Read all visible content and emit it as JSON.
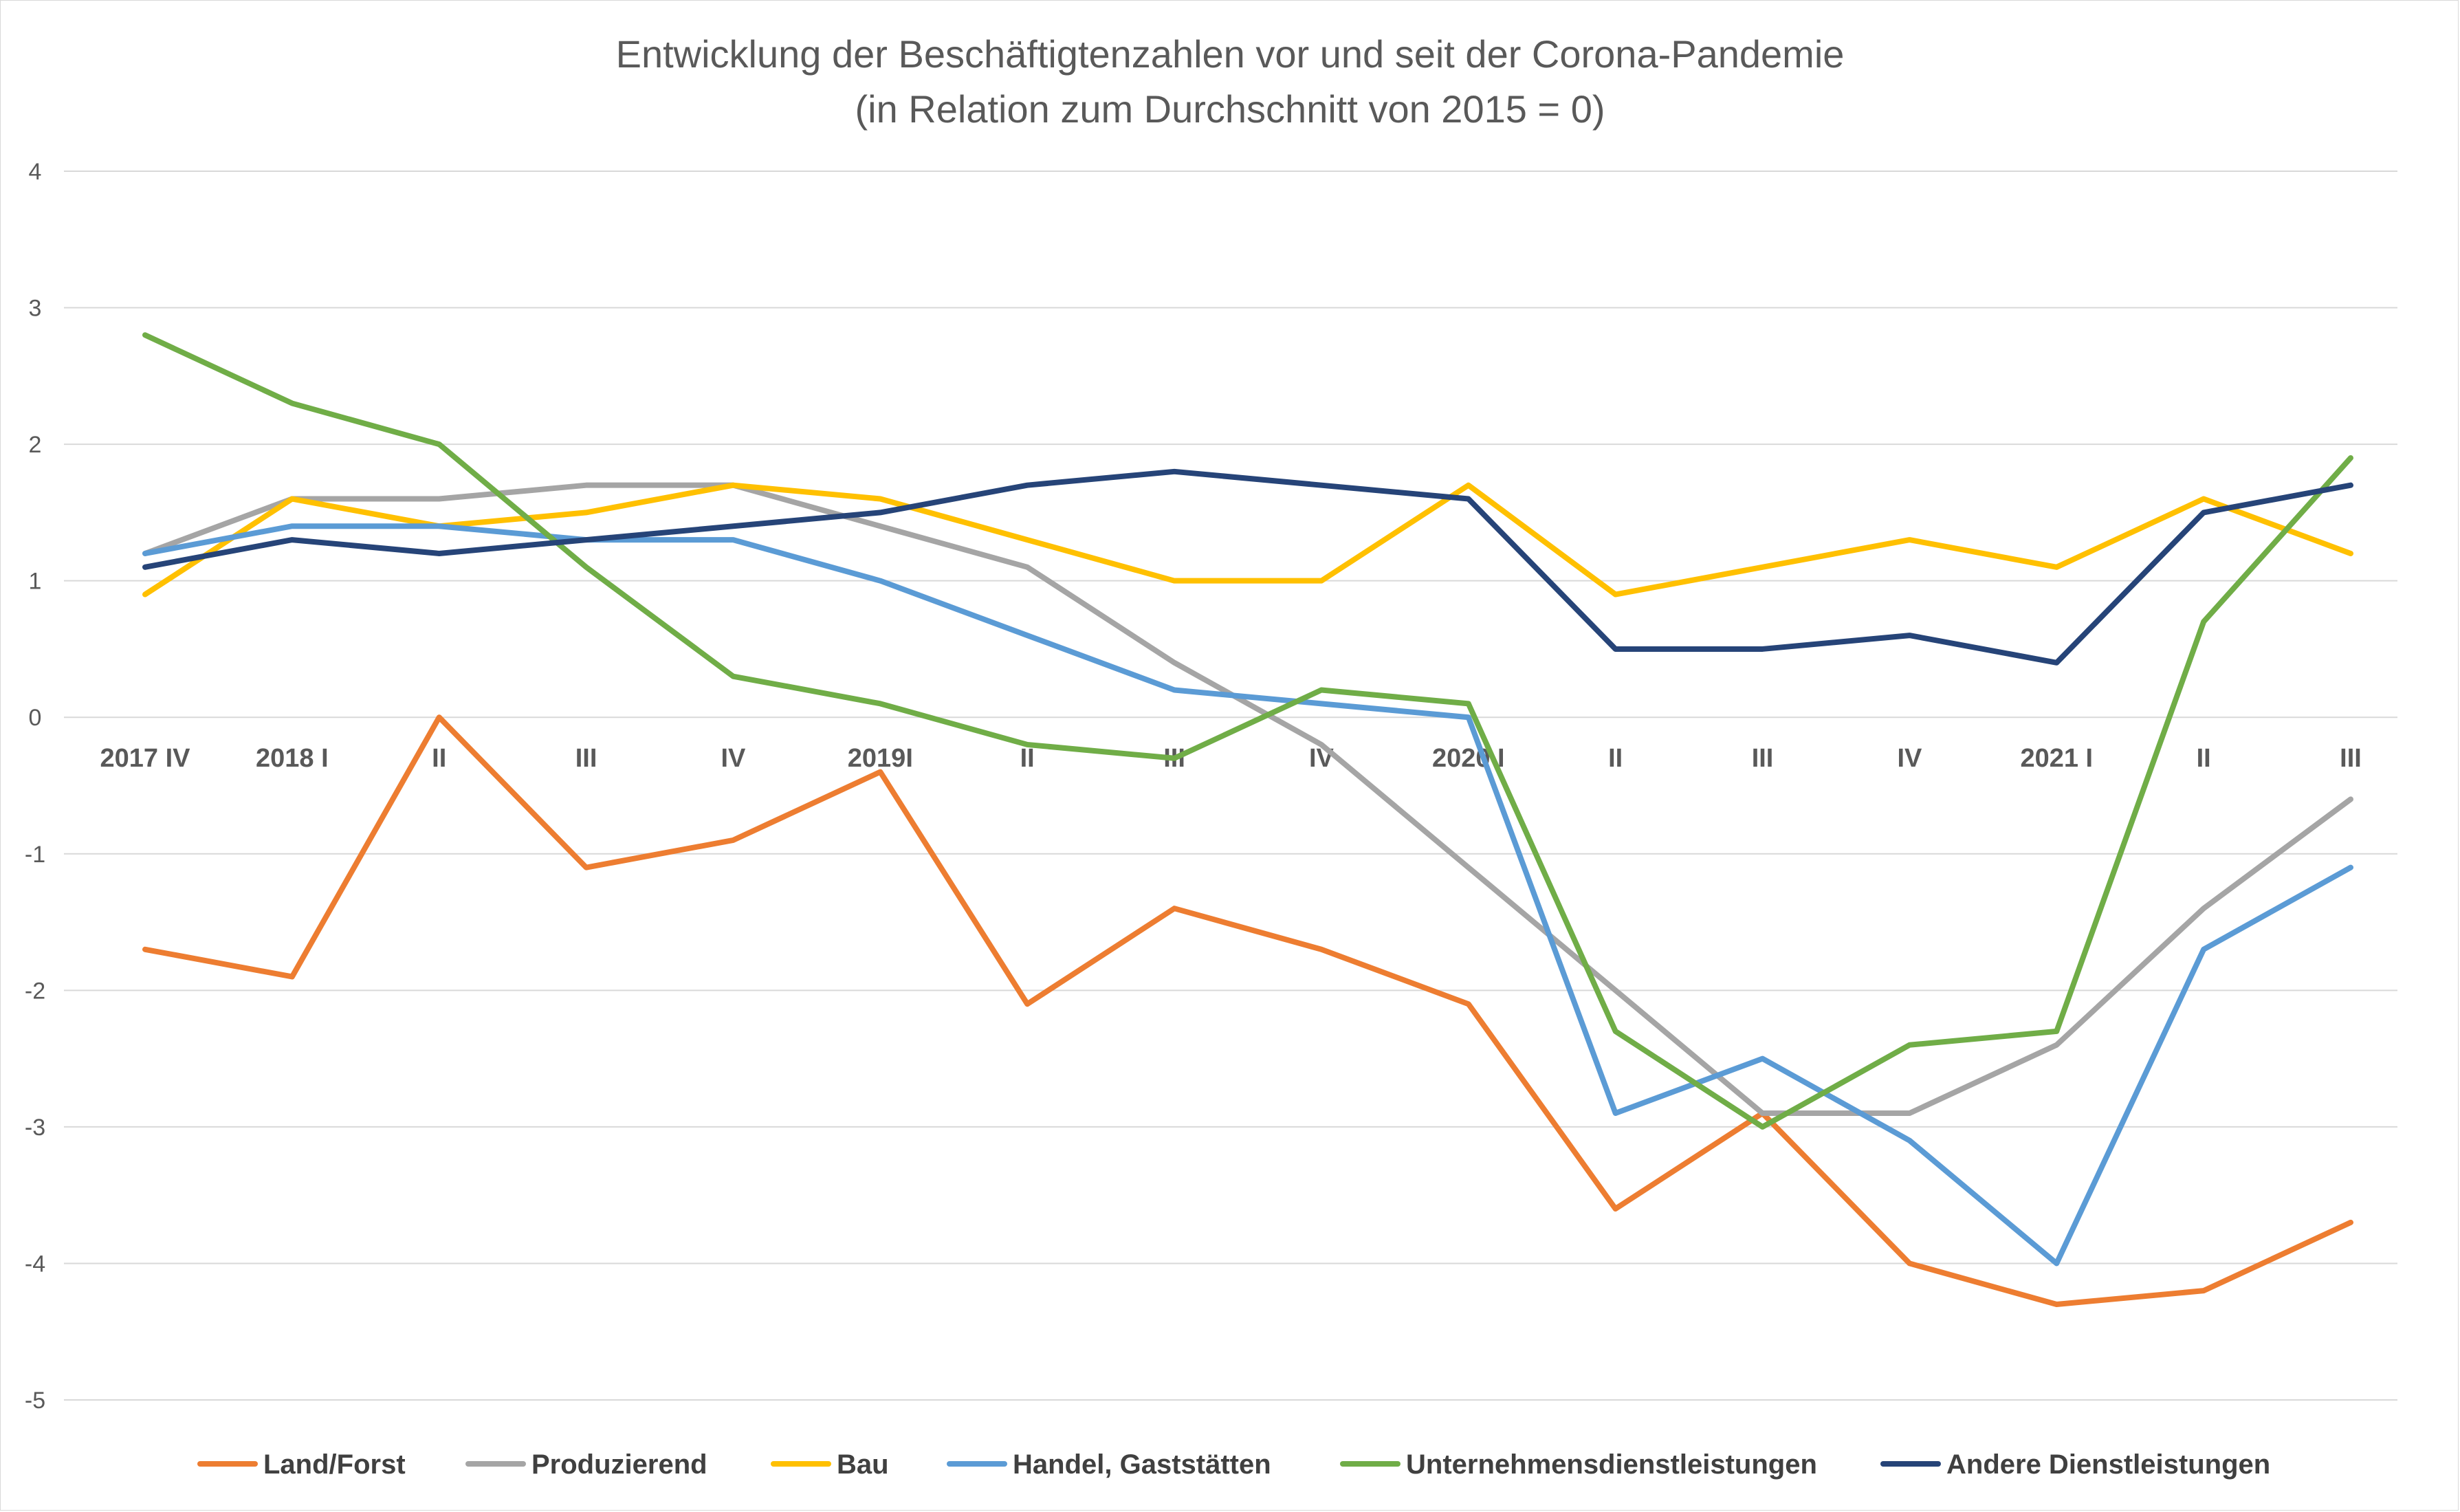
{
  "chart_data": {
    "type": "line",
    "title": "Entwicklung der Beschäftigtenzahlen vor und seit der Corona-Pandemie",
    "subtitle": "(in Relation zum Durchschnitt von 2015 = 0)",
    "categories": [
      "2017 IV",
      "2018 I",
      "II",
      "III",
      "IV",
      "2019I",
      "II",
      "III",
      "IV",
      "2020 I",
      "II",
      "III",
      "IV",
      "2021 I",
      "II",
      "III"
    ],
    "ylim": [
      -5,
      4
    ],
    "yticks": [
      "-5",
      "-4",
      "-3",
      "-2",
      "-1",
      "0",
      "1",
      "2",
      "3",
      "4"
    ],
    "grid": true,
    "legend_position": "bottom",
    "series": [
      {
        "name": "Land/Forst",
        "color": "#ED7D31",
        "values": [
          -1.7,
          -1.9,
          0.0,
          -1.1,
          -0.9,
          -0.4,
          -2.1,
          -1.4,
          -1.7,
          -2.1,
          -3.6,
          -2.9,
          -4.0,
          -4.3,
          -4.2,
          -3.7
        ]
      },
      {
        "name": "Produzierend",
        "color": "#A5A5A5",
        "values": [
          1.2,
          1.6,
          1.6,
          1.7,
          1.7,
          1.4,
          1.1,
          0.4,
          -0.2,
          -1.1,
          -2.0,
          -2.9,
          -2.9,
          -2.4,
          -1.4,
          -0.6
        ]
      },
      {
        "name": "Bau",
        "color": "#FFC000",
        "values": [
          0.9,
          1.6,
          1.4,
          1.5,
          1.7,
          1.6,
          1.3,
          1.0,
          1.0,
          1.7,
          0.9,
          1.1,
          1.3,
          1.1,
          1.6,
          1.2
        ]
      },
      {
        "name": "Handel, Gaststätten",
        "color": "#5B9BD5",
        "values": [
          1.2,
          1.4,
          1.4,
          1.3,
          1.3,
          1.0,
          0.6,
          0.2,
          0.1,
          0.0,
          -2.9,
          -2.5,
          -3.1,
          -4.0,
          -1.7,
          -1.1
        ]
      },
      {
        "name": "Unternehmensdienstleistungen",
        "color": "#70AD47",
        "values": [
          2.8,
          2.3,
          2.0,
          1.1,
          0.3,
          0.1,
          -0.2,
          -0.3,
          0.2,
          0.1,
          -2.3,
          -3.0,
          -2.4,
          -2.3,
          0.7,
          1.9
        ]
      },
      {
        "name": "Andere Dienstleistungen",
        "color": "#264478",
        "values": [
          1.1,
          1.3,
          1.2,
          1.3,
          1.4,
          1.5,
          1.7,
          1.8,
          1.7,
          1.6,
          0.5,
          0.5,
          0.6,
          0.4,
          1.5,
          1.7
        ]
      }
    ]
  }
}
